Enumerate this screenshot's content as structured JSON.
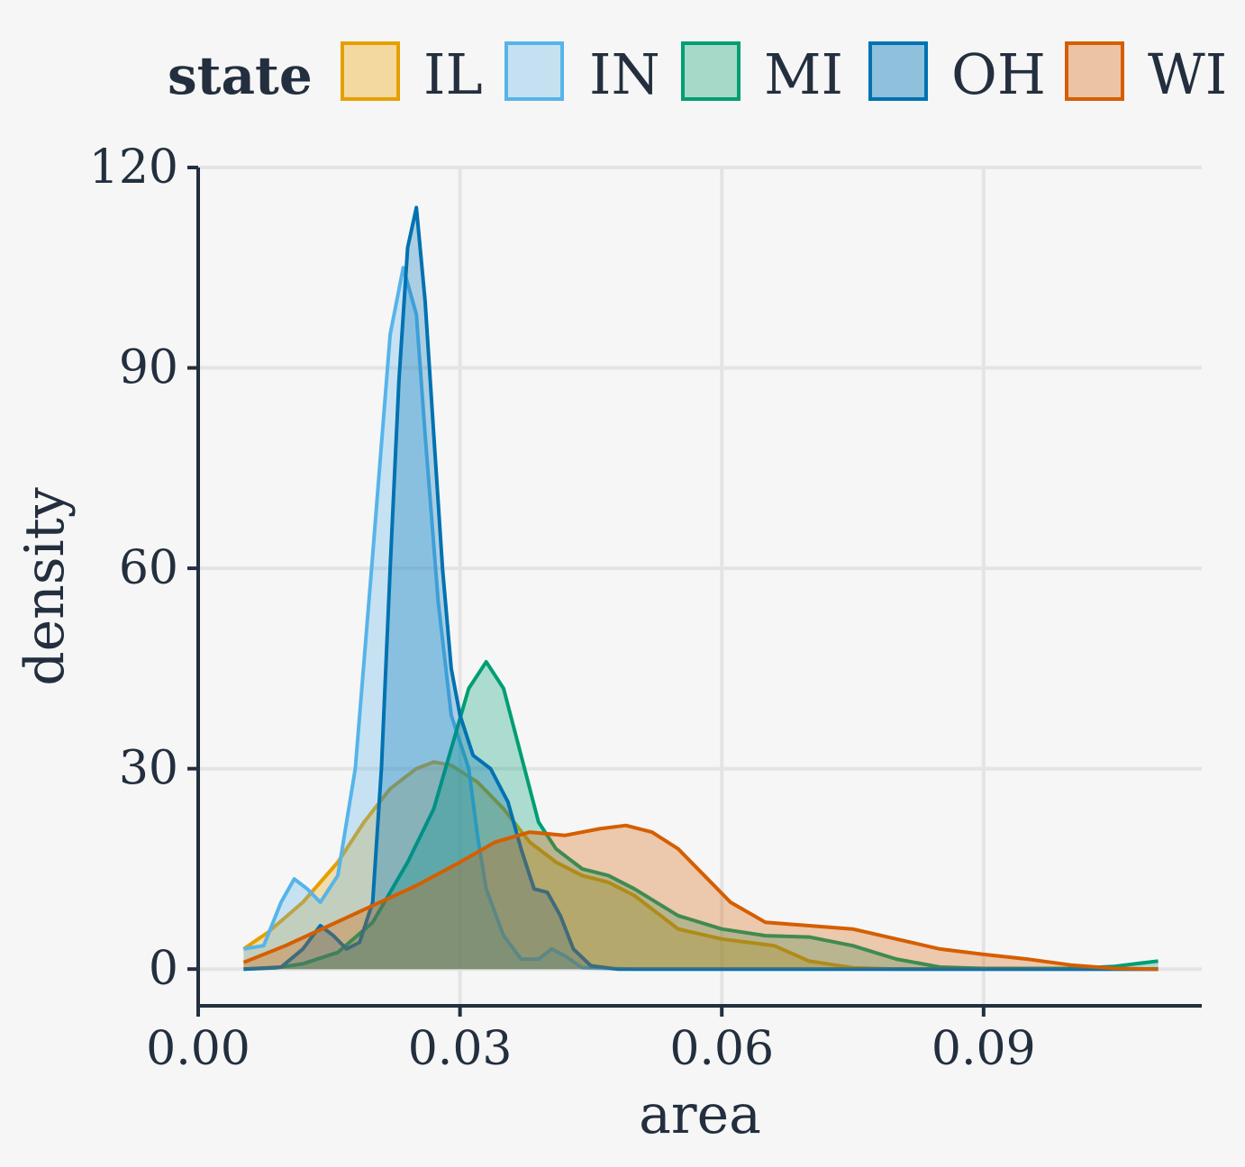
{
  "chart_data": {
    "type": "area",
    "subtype": "density",
    "title": "",
    "xlabel": "area",
    "ylabel": "density",
    "xlim": [
      0.0,
      0.115
    ],
    "ylim": [
      -5.5,
      120
    ],
    "x_ticks": [
      "0.00",
      "0.03",
      "0.06",
      "0.09"
    ],
    "x_tick_values": [
      0.0,
      0.03,
      0.06,
      0.09
    ],
    "y_ticks": [
      "0",
      "30",
      "60",
      "90",
      "120"
    ],
    "y_tick_values": [
      0,
      30,
      60,
      90,
      120
    ],
    "grid": true,
    "legend": {
      "title": "state",
      "position": "top"
    },
    "series": [
      {
        "name": "IL",
        "color": "#e69f00",
        "fill": "#f3d9a0",
        "points": [
          [
            0.0052,
            3.0
          ],
          [
            0.008,
            5.5
          ],
          [
            0.012,
            10
          ],
          [
            0.016,
            16
          ],
          [
            0.019,
            22
          ],
          [
            0.022,
            27
          ],
          [
            0.025,
            30
          ],
          [
            0.027,
            31
          ],
          [
            0.029,
            30.5
          ],
          [
            0.032,
            28
          ],
          [
            0.035,
            24
          ],
          [
            0.038,
            19
          ],
          [
            0.041,
            16
          ],
          [
            0.044,
            14
          ],
          [
            0.047,
            13
          ],
          [
            0.05,
            11
          ],
          [
            0.055,
            6
          ],
          [
            0.06,
            4.5
          ],
          [
            0.063,
            4
          ],
          [
            0.066,
            3.5
          ],
          [
            0.07,
            1.2
          ],
          [
            0.075,
            0.2
          ],
          [
            0.08,
            0
          ],
          [
            0.09,
            0
          ],
          [
            0.1,
            0
          ],
          [
            0.11,
            0
          ]
        ]
      },
      {
        "name": "IN",
        "color": "#56b4e9",
        "fill": "#c5e1f1",
        "points": [
          [
            0.0052,
            3.0
          ],
          [
            0.0075,
            3.5
          ],
          [
            0.0095,
            10
          ],
          [
            0.011,
            13.5
          ],
          [
            0.0125,
            12
          ],
          [
            0.014,
            10
          ],
          [
            0.016,
            14
          ],
          [
            0.018,
            30
          ],
          [
            0.02,
            62
          ],
          [
            0.022,
            95
          ],
          [
            0.0235,
            105
          ],
          [
            0.025,
            98
          ],
          [
            0.026,
            80
          ],
          [
            0.0275,
            55
          ],
          [
            0.029,
            38
          ],
          [
            0.03,
            34
          ],
          [
            0.031,
            30
          ],
          [
            0.032,
            20
          ],
          [
            0.033,
            12
          ],
          [
            0.035,
            5
          ],
          [
            0.037,
            1.5
          ],
          [
            0.039,
            1.5
          ],
          [
            0.0405,
            3
          ],
          [
            0.042,
            2
          ],
          [
            0.044,
            0.2
          ],
          [
            0.05,
            0
          ],
          [
            0.06,
            0
          ],
          [
            0.08,
            0
          ],
          [
            0.1,
            0
          ],
          [
            0.11,
            0
          ]
        ]
      },
      {
        "name": "MI",
        "color": "#009e73",
        "fill": "#a6d9c8",
        "points": [
          [
            0.0052,
            0
          ],
          [
            0.009,
            0.2
          ],
          [
            0.012,
            0.8
          ],
          [
            0.016,
            2.5
          ],
          [
            0.02,
            7
          ],
          [
            0.024,
            16
          ],
          [
            0.027,
            24
          ],
          [
            0.029,
            33
          ],
          [
            0.031,
            42
          ],
          [
            0.033,
            46
          ],
          [
            0.035,
            42
          ],
          [
            0.037,
            32
          ],
          [
            0.039,
            22
          ],
          [
            0.041,
            18
          ],
          [
            0.044,
            15
          ],
          [
            0.047,
            14
          ],
          [
            0.05,
            12
          ],
          [
            0.055,
            8
          ],
          [
            0.06,
            6
          ],
          [
            0.065,
            5
          ],
          [
            0.07,
            4.8
          ],
          [
            0.075,
            3.5
          ],
          [
            0.08,
            1.5
          ],
          [
            0.085,
            0.3
          ],
          [
            0.09,
            0.1
          ],
          [
            0.1,
            0.1
          ],
          [
            0.105,
            0.4
          ],
          [
            0.11,
            1.2
          ]
        ]
      },
      {
        "name": "OH",
        "color": "#0072b2",
        "fill": "#8fc0dc",
        "points": [
          [
            0.0052,
            0
          ],
          [
            0.0095,
            0.3
          ],
          [
            0.012,
            3
          ],
          [
            0.014,
            6.5
          ],
          [
            0.0155,
            5
          ],
          [
            0.017,
            3
          ],
          [
            0.0185,
            4
          ],
          [
            0.02,
            10
          ],
          [
            0.021,
            30
          ],
          [
            0.022,
            60
          ],
          [
            0.023,
            88
          ],
          [
            0.024,
            108
          ],
          [
            0.025,
            114
          ],
          [
            0.026,
            100
          ],
          [
            0.027,
            80
          ],
          [
            0.028,
            60
          ],
          [
            0.029,
            45
          ],
          [
            0.03,
            38
          ],
          [
            0.0315,
            32
          ],
          [
            0.0335,
            30
          ],
          [
            0.0355,
            25
          ],
          [
            0.037,
            18
          ],
          [
            0.0385,
            12
          ],
          [
            0.04,
            11.5
          ],
          [
            0.0415,
            8
          ],
          [
            0.043,
            3
          ],
          [
            0.045,
            0.5
          ],
          [
            0.048,
            0
          ],
          [
            0.06,
            0
          ],
          [
            0.08,
            0
          ],
          [
            0.1,
            0
          ],
          [
            0.11,
            0
          ]
        ]
      },
      {
        "name": "WI",
        "color": "#d55e00",
        "fill": "#ecc4a4",
        "points": [
          [
            0.0052,
            1.0
          ],
          [
            0.01,
            3.5
          ],
          [
            0.015,
            6.5
          ],
          [
            0.02,
            9.5
          ],
          [
            0.025,
            12.5
          ],
          [
            0.03,
            16
          ],
          [
            0.034,
            19
          ],
          [
            0.038,
            20.5
          ],
          [
            0.042,
            20
          ],
          [
            0.046,
            21
          ],
          [
            0.049,
            21.5
          ],
          [
            0.052,
            20.5
          ],
          [
            0.055,
            18
          ],
          [
            0.058,
            14
          ],
          [
            0.061,
            10
          ],
          [
            0.065,
            7
          ],
          [
            0.07,
            6.5
          ],
          [
            0.075,
            6
          ],
          [
            0.08,
            4.5
          ],
          [
            0.085,
            3
          ],
          [
            0.09,
            2.2
          ],
          [
            0.095,
            1.5
          ],
          [
            0.1,
            0.6
          ],
          [
            0.105,
            0.1
          ],
          [
            0.11,
            0
          ]
        ]
      }
    ]
  }
}
